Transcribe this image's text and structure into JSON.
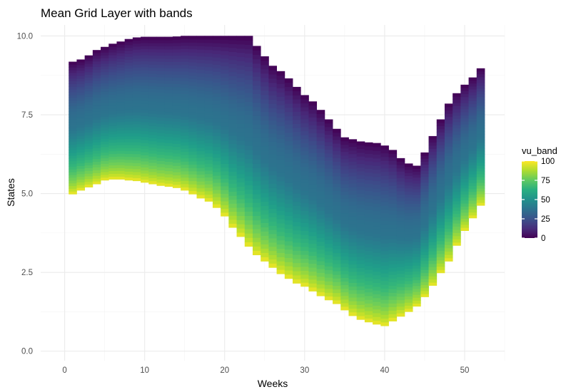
{
  "chart_data": {
    "type": "heatmap",
    "title": "Mean Grid Layer with bands",
    "xlabel": "Weeks",
    "ylabel": "States",
    "xlim": [
      -3,
      55
    ],
    "ylim": [
      -0.3,
      10.35
    ],
    "x_ticks": [
      0,
      10,
      20,
      30,
      40,
      50
    ],
    "x_tick_labels": [
      "0",
      "10",
      "20",
      "30",
      "40",
      "50"
    ],
    "y_ticks": [
      0,
      2.5,
      5,
      7.5,
      10
    ],
    "y_tick_labels": [
      "0.0",
      "2.5",
      "5.0",
      "7.5",
      "10.0"
    ],
    "grid": true,
    "fill_variable": "vu_band",
    "legend": {
      "title": "vu_band",
      "position": "right",
      "range": [
        0,
        100
      ],
      "breaks": [
        0,
        25,
        50,
        75,
        100
      ],
      "break_labels": [
        "0",
        "25",
        "50",
        "75",
        "100"
      ],
      "colormap": "viridis"
    },
    "weeks": [
      1,
      2,
      3,
      4,
      5,
      6,
      7,
      8,
      9,
      10,
      11,
      12,
      13,
      14,
      15,
      16,
      17,
      18,
      19,
      20,
      21,
      22,
      23,
      24,
      25,
      26,
      27,
      28,
      29,
      30,
      31,
      32,
      33,
      34,
      35,
      36,
      37,
      38,
      39,
      40,
      41,
      42,
      43,
      44,
      45,
      46,
      47,
      48,
      49,
      50,
      51,
      52
    ],
    "lower": [
      4.98,
      5.1,
      5.2,
      5.3,
      5.42,
      5.45,
      5.45,
      5.42,
      5.4,
      5.35,
      5.3,
      5.25,
      5.22,
      5.18,
      5.1,
      4.98,
      4.85,
      4.75,
      4.55,
      4.28,
      3.92,
      3.63,
      3.32,
      3.05,
      2.85,
      2.65,
      2.45,
      2.3,
      2.15,
      2.05,
      1.9,
      1.75,
      1.62,
      1.5,
      1.3,
      1.12,
      1.0,
      0.92,
      0.85,
      0.8,
      0.95,
      1.1,
      1.25,
      1.42,
      1.72,
      2.08,
      2.48,
      2.85,
      3.35,
      3.82,
      4.22,
      4.62
    ],
    "upper": [
      9.18,
      9.25,
      9.38,
      9.55,
      9.65,
      9.75,
      9.82,
      9.9,
      9.95,
      9.97,
      9.97,
      9.97,
      9.97,
      9.98,
      10.0,
      10.0,
      10.0,
      10.0,
      10.0,
      10.0,
      10.0,
      10.0,
      10.0,
      9.68,
      9.35,
      9.05,
      8.88,
      8.65,
      8.38,
      8.12,
      7.92,
      7.65,
      7.35,
      7.05,
      6.78,
      6.72,
      6.65,
      6.62,
      6.6,
      6.52,
      6.38,
      6.12,
      5.95,
      5.88,
      6.3,
      6.82,
      7.35,
      7.85,
      8.18,
      8.45,
      8.68,
      8.97
    ]
  }
}
